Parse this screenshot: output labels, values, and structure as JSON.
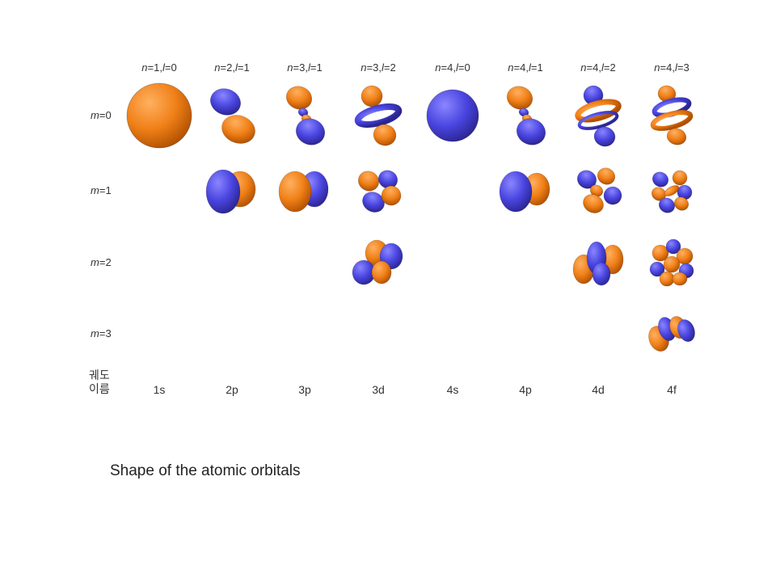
{
  "columns": [
    {
      "n": "1",
      "l": "0",
      "name": "1s"
    },
    {
      "n": "2",
      "l": "1",
      "name": "2p"
    },
    {
      "n": "3",
      "l": "1",
      "name": "3p"
    },
    {
      "n": "3",
      "l": "2",
      "name": "3d"
    },
    {
      "n": "4",
      "l": "0",
      "name": "4s"
    },
    {
      "n": "4",
      "l": "1",
      "name": "4p"
    },
    {
      "n": "4",
      "l": "2",
      "name": "4d"
    },
    {
      "n": "4",
      "l": "3",
      "name": "4f"
    }
  ],
  "rows": [
    {
      "m": "0"
    },
    {
      "m": "1"
    },
    {
      "m": "2"
    },
    {
      "m": "3"
    }
  ],
  "name_row_header": [
    "궤도",
    "이름"
  ],
  "caption": "Shape of the atomic orbitals",
  "colors": {
    "orange": "#f08018",
    "blue": "#4a45e0"
  },
  "orbitals": [
    {
      "col": 0,
      "row": 0,
      "shape": "sphere",
      "color": "orange"
    },
    {
      "col": 4,
      "row": 0,
      "shape": "sphere",
      "color": "blue"
    },
    {
      "col": 1,
      "row": 0,
      "shape": "p-z"
    },
    {
      "col": 2,
      "row": 0,
      "shape": "p-z-node"
    },
    {
      "col": 5,
      "row": 0,
      "shape": "p-z-node"
    },
    {
      "col": 3,
      "row": 0,
      "shape": "d-z2"
    },
    {
      "col": 6,
      "row": 0,
      "shape": "d-z2-node"
    },
    {
      "col": 7,
      "row": 0,
      "shape": "f-z3"
    },
    {
      "col": 1,
      "row": 1,
      "shape": "p-x"
    },
    {
      "col": 2,
      "row": 1,
      "shape": "p-x-node"
    },
    {
      "col": 5,
      "row": 1,
      "shape": "p-x-node"
    },
    {
      "col": 3,
      "row": 1,
      "shape": "d-xz"
    },
    {
      "col": 6,
      "row": 1,
      "shape": "d-xz-node"
    },
    {
      "col": 7,
      "row": 1,
      "shape": "f-m1"
    },
    {
      "col": 3,
      "row": 2,
      "shape": "d-xy"
    },
    {
      "col": 6,
      "row": 2,
      "shape": "d-xy-node"
    },
    {
      "col": 7,
      "row": 2,
      "shape": "f-m2"
    },
    {
      "col": 7,
      "row": 3,
      "shape": "f-m3"
    }
  ]
}
